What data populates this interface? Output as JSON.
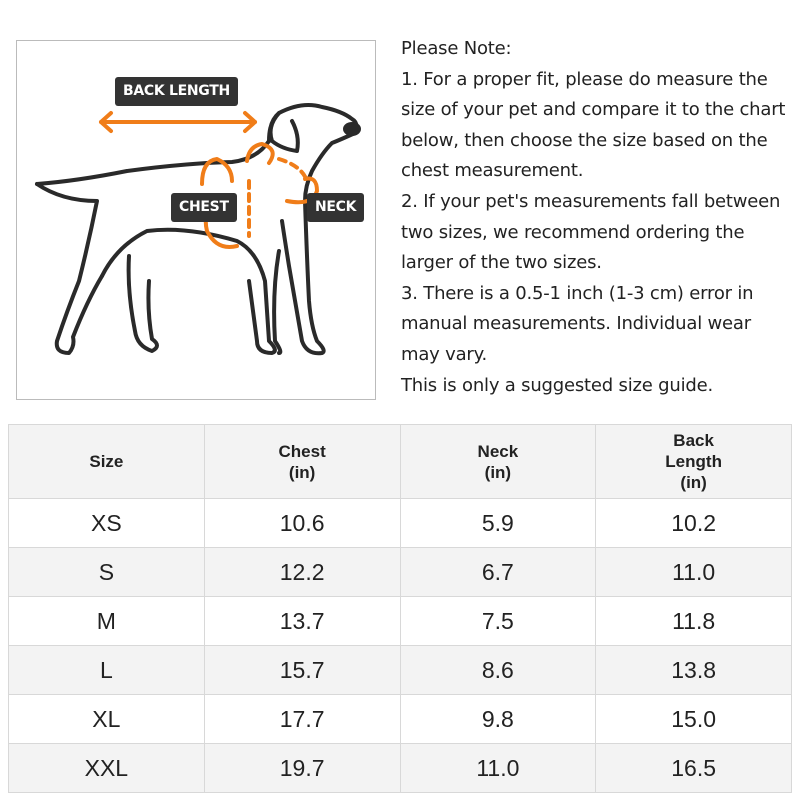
{
  "illustration": {
    "labels": {
      "back_length": "BACK LENGTH",
      "chest": "CHEST",
      "neck": "NECK"
    },
    "accent_color": "#f07d19",
    "label_bg": "#333333"
  },
  "note": {
    "lines": [
      "Please Note:",
      "1. For a proper fit, please do measure the",
      "size of your pet and compare it to the chart",
      "below, then choose the size based on the",
      "chest measurement.",
      "2. If your pet's measurements fall between",
      "two sizes, we recommend ordering the",
      "larger of the two sizes.",
      "3. There is a 0.5-1 inch (1-3 cm) error in",
      "manual measurements. Individual wear",
      "may vary.",
      "This is only a suggested size guide."
    ]
  },
  "table": {
    "headers": [
      [
        "Size"
      ],
      [
        "Chest",
        "(in)"
      ],
      [
        "Neck",
        "(in)"
      ],
      [
        "Back",
        "Length",
        "(in)"
      ]
    ],
    "rows": [
      [
        "XS",
        "10.6",
        "5.9",
        "10.2"
      ],
      [
        "S",
        "12.2",
        "6.7",
        "11.0"
      ],
      [
        "M",
        "13.7",
        "7.5",
        "11.8"
      ],
      [
        "L",
        "15.7",
        "8.6",
        "13.8"
      ],
      [
        "XL",
        "17.7",
        "9.8",
        "15.0"
      ],
      [
        "XXL",
        "19.7",
        "11.0",
        "16.5"
      ]
    ]
  }
}
